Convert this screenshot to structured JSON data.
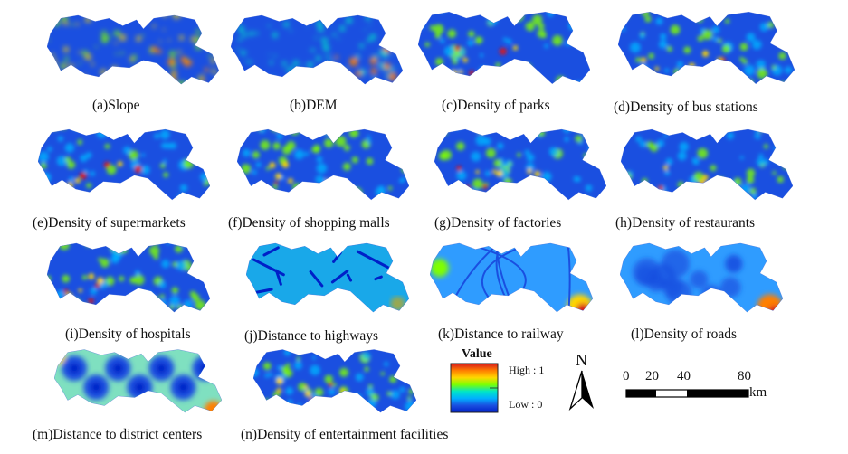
{
  "panels": [
    {
      "id": "a",
      "caption": "(a)Slope",
      "style": "slope"
    },
    {
      "id": "b",
      "caption": "(b)DEM",
      "style": "dem"
    },
    {
      "id": "c",
      "caption": "(c)Density of parks",
      "style": "blobs"
    },
    {
      "id": "d",
      "caption": "(d)Density of bus stations",
      "style": "blobs"
    },
    {
      "id": "e",
      "caption": "(e)Density of supermarkets",
      "style": "blobs"
    },
    {
      "id": "f",
      "caption": "(f)Density of shopping malls",
      "style": "blobs"
    },
    {
      "id": "g",
      "caption": "(g)Density of factories",
      "style": "blobs"
    },
    {
      "id": "h",
      "caption": "(h)Density of restaurants",
      "style": "blobs"
    },
    {
      "id": "i",
      "caption": "(i)Density of  hospitals",
      "style": "blobs"
    },
    {
      "id": "j",
      "caption": "(j)Distance to highways",
      "style": "highway"
    },
    {
      "id": "k",
      "caption": "(k)Distance to railway",
      "style": "railway"
    },
    {
      "id": "l",
      "caption": "(l)Density of roads",
      "style": "roads"
    },
    {
      "id": "m",
      "caption": "(m)Distance to district centers",
      "style": "centers"
    },
    {
      "id": "n",
      "caption": "(n)Density of entertainment facilities",
      "style": "blobs"
    }
  ],
  "legend": {
    "title": "Value",
    "high": "High : 1",
    "low": "Low : 0",
    "colors": [
      "#d7191c",
      "#ff7f00",
      "#ffd700",
      "#7fff00",
      "#00e5c8",
      "#00b0ff",
      "#1a4fe0",
      "#0020c8"
    ]
  },
  "north_arrow": {
    "label": "N"
  },
  "scale_bar": {
    "ticks": [
      "0",
      "20",
      "40",
      "80"
    ],
    "unit": "km"
  }
}
